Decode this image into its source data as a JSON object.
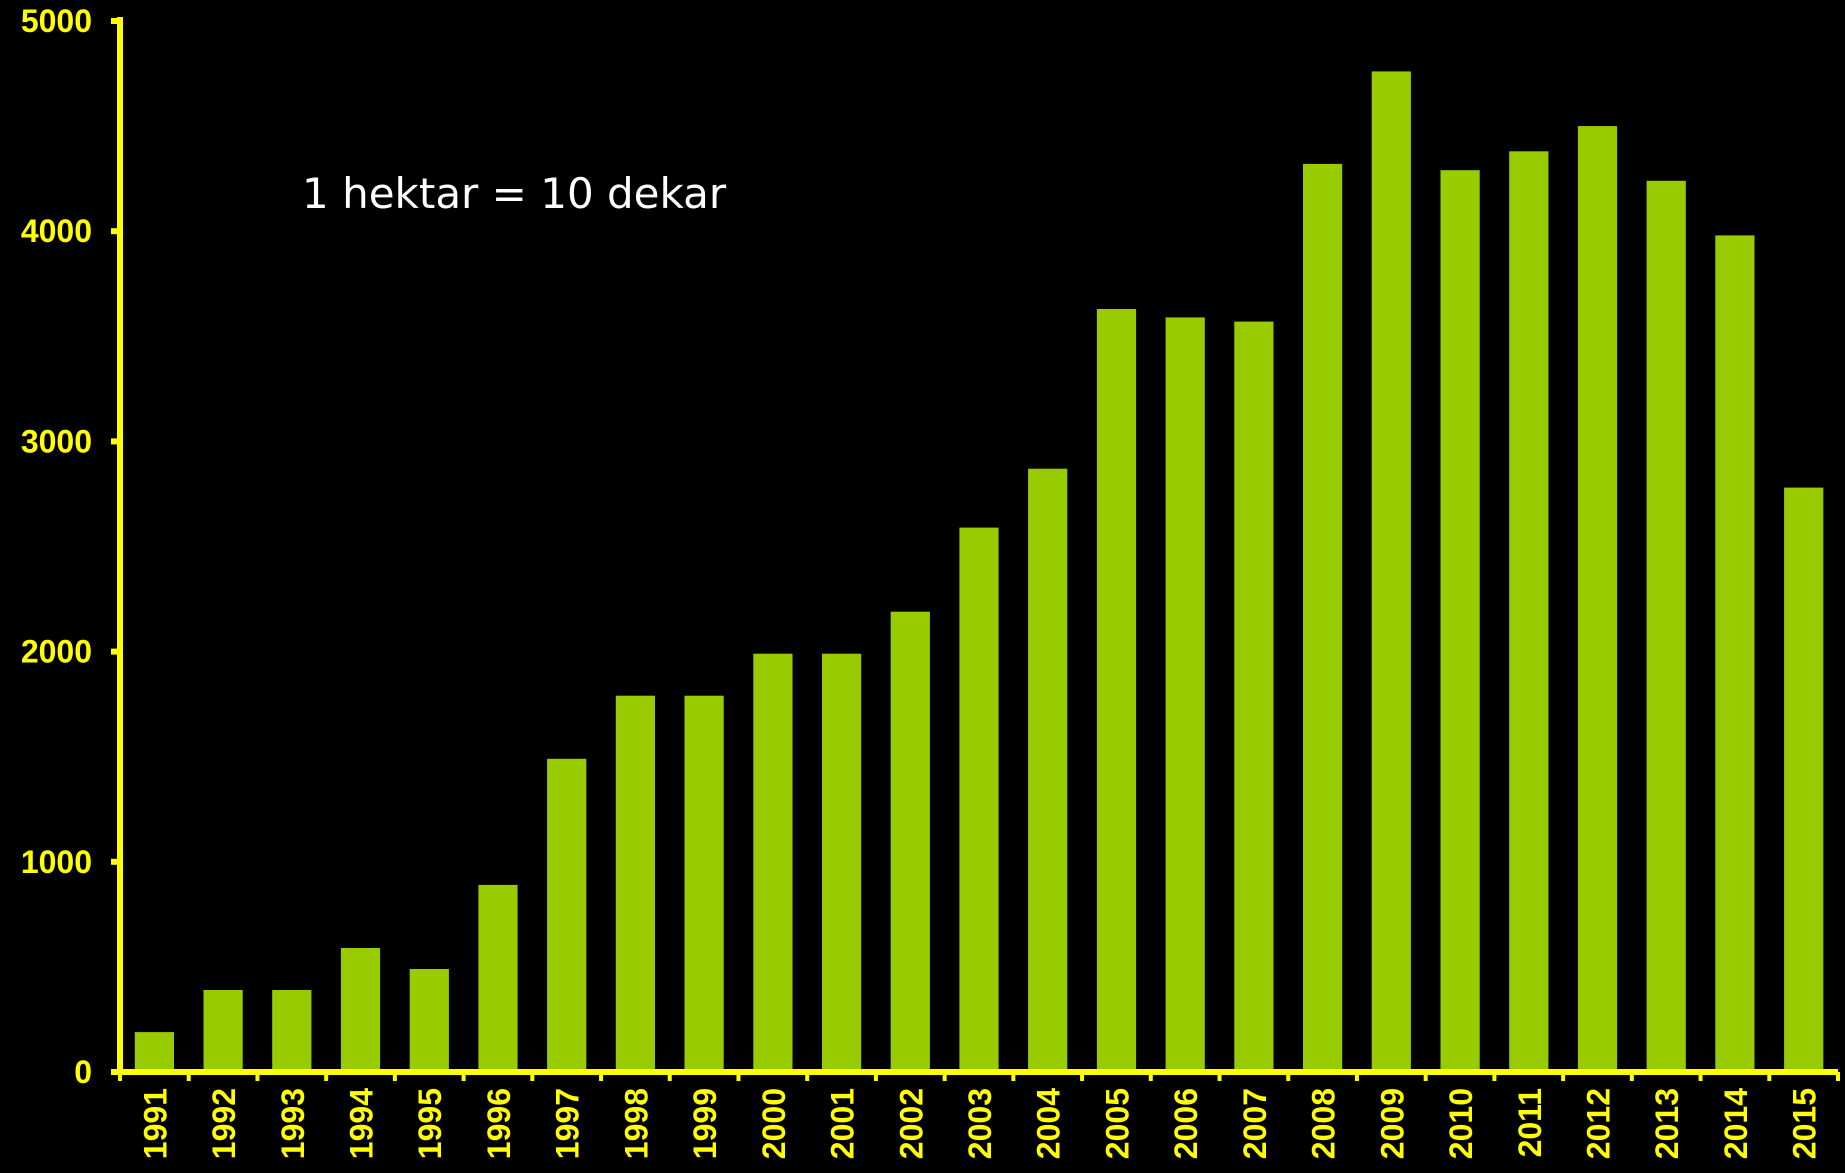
{
  "chart_data": {
    "type": "bar",
    "title": "",
    "xlabel": "",
    "ylabel": "",
    "ylim": [
      0,
      5000
    ],
    "yticks": [
      "0",
      "1000",
      "2000",
      "3000",
      "4000",
      "5000"
    ],
    "grid": false,
    "legend": "none",
    "categories": [
      "1991",
      "1992",
      "1993",
      "1994",
      "1995",
      "1996",
      "1997",
      "1998",
      "1999",
      "2000",
      "2001",
      "2002",
      "2003",
      "2004",
      "2005",
      "2006",
      "2007",
      "2008",
      "2009",
      "2010",
      "2011",
      "2012",
      "2013",
      "2014",
      "2015"
    ],
    "values": [
      190,
      390,
      390,
      590,
      490,
      890,
      1490,
      1790,
      1790,
      1990,
      1990,
      2190,
      2590,
      2870,
      3630,
      3590,
      3570,
      4320,
      4760,
      4290,
      4380,
      4500,
      4240,
      3980,
      2780
    ],
    "annotation": "1 hektar = 10 dekar",
    "colors": {
      "background": "#000000",
      "bar": "#99cc00",
      "axis": "#ffff00",
      "tick_label": "#ffff00",
      "annotation": "#ffffff"
    }
  }
}
